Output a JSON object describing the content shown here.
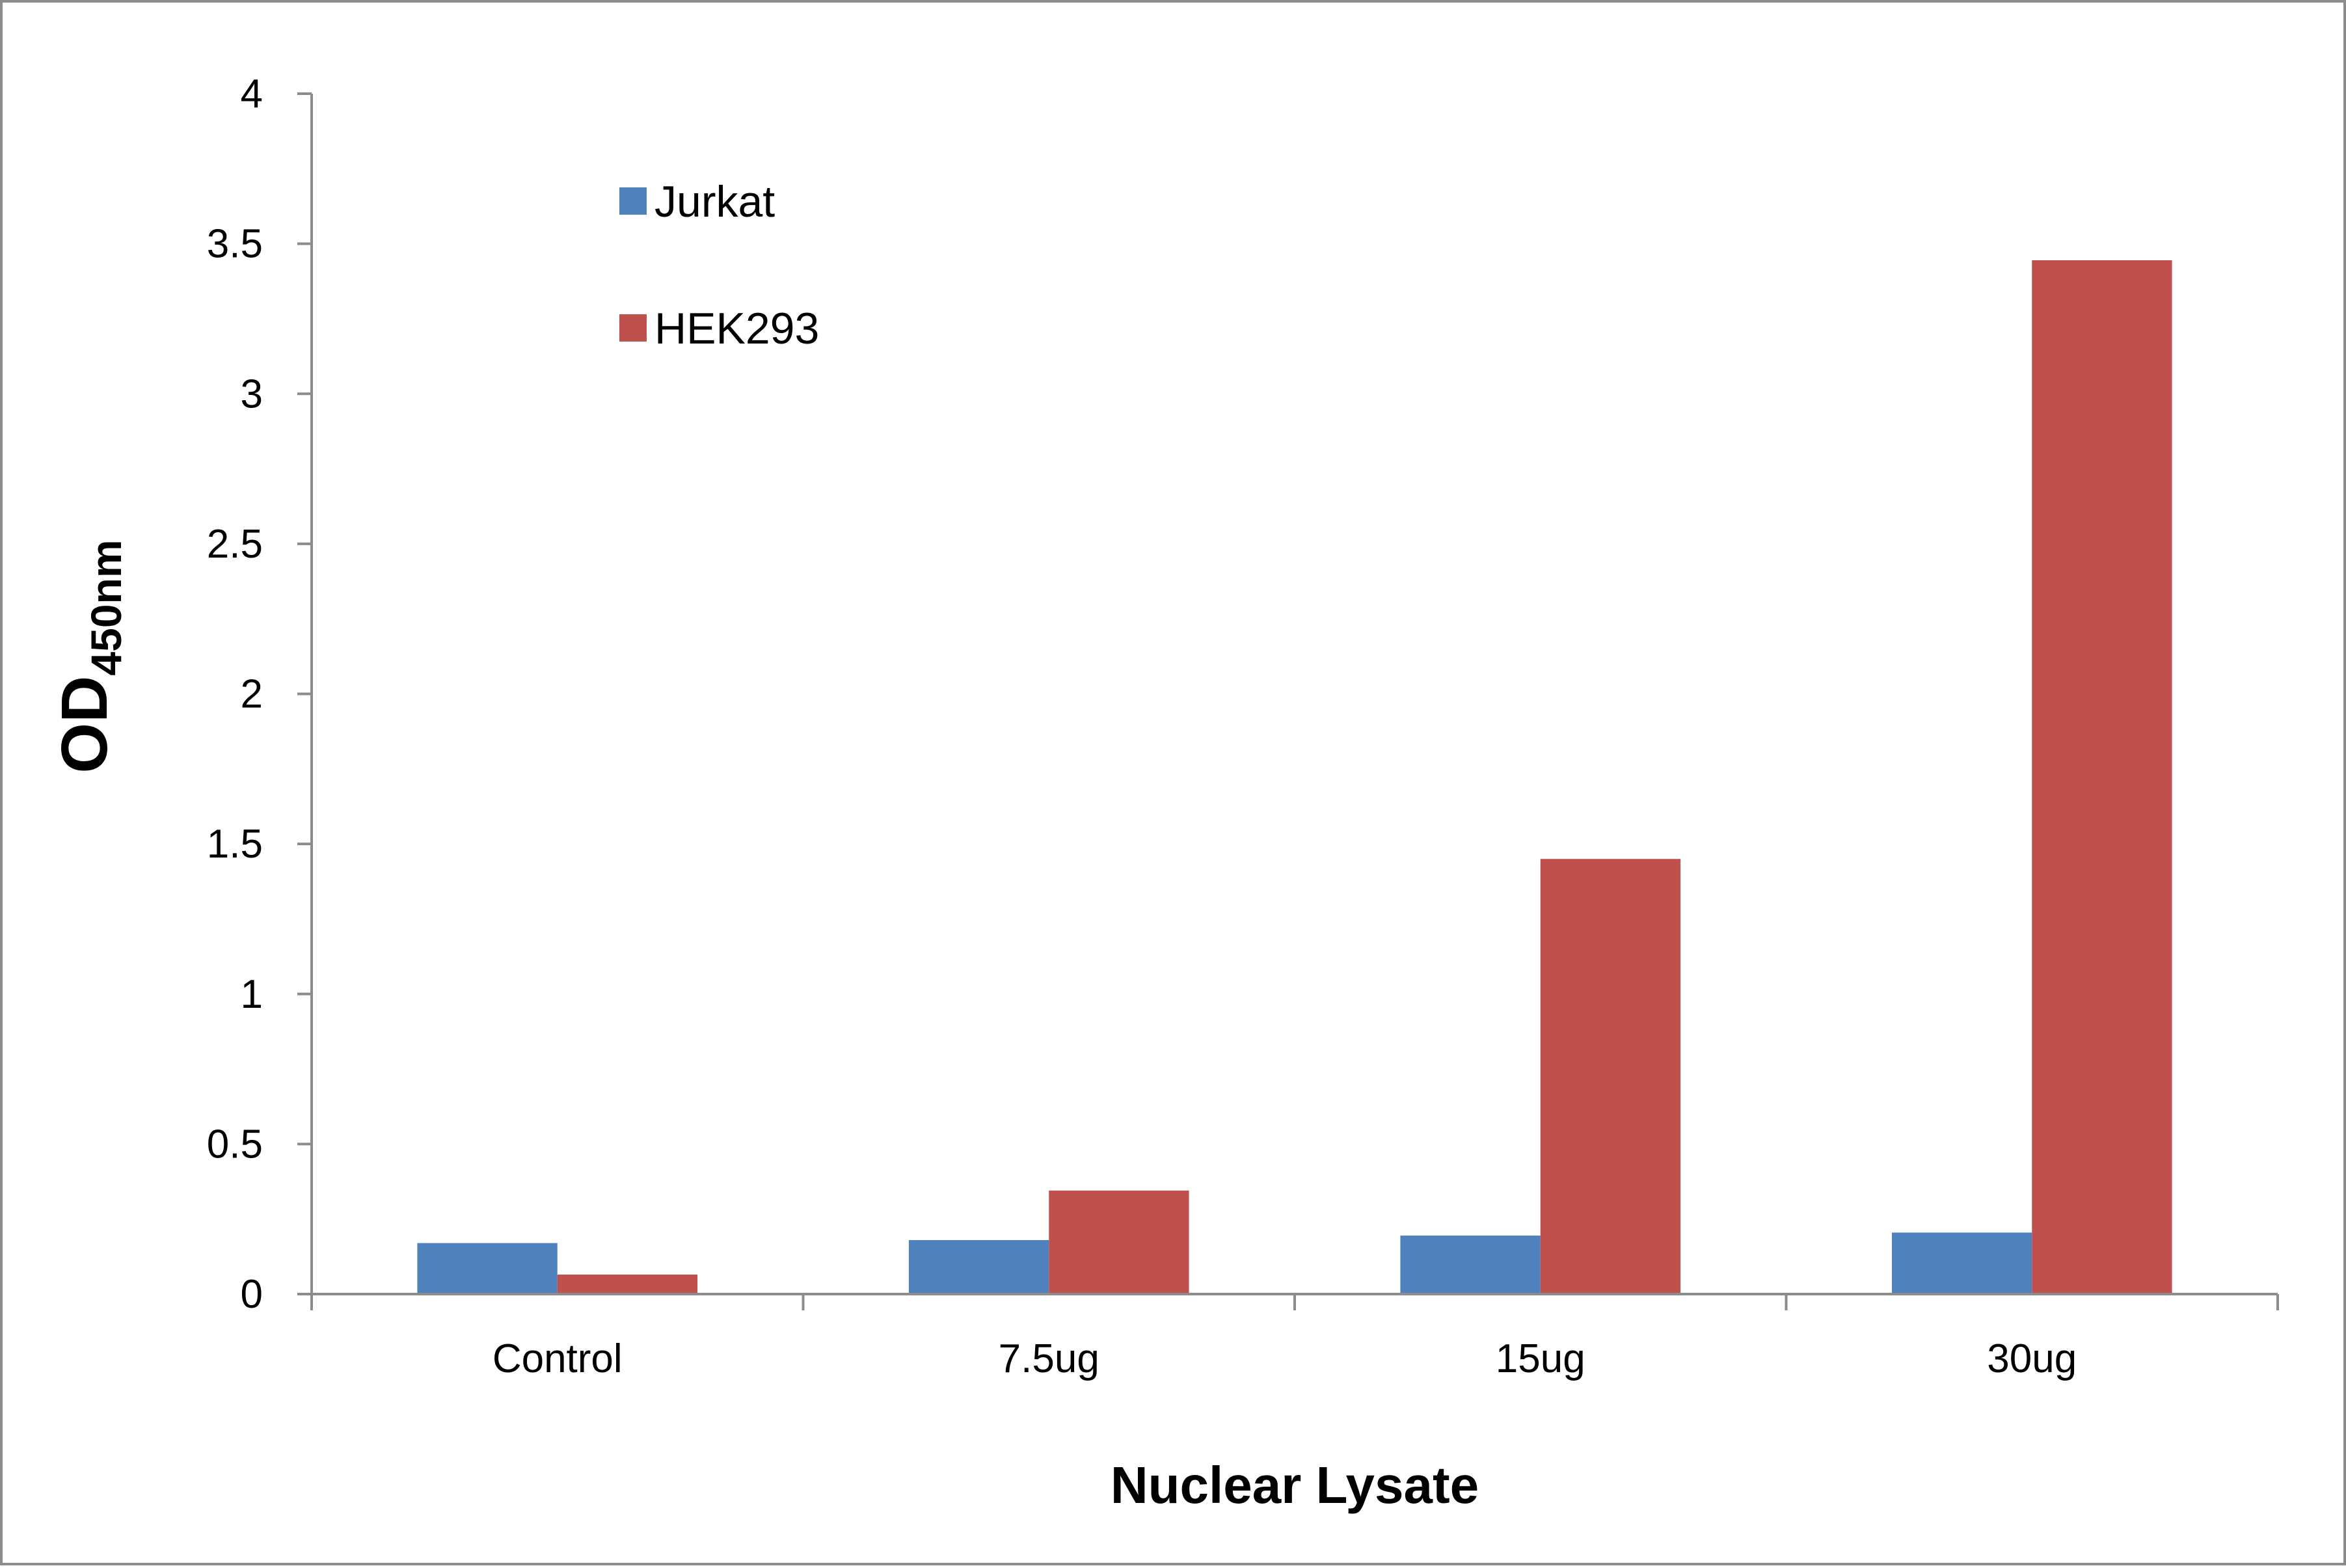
{
  "chart_data": {
    "type": "bar",
    "title": "",
    "xlabel": "Nuclear Lysate",
    "ylabel": {
      "main": "OD",
      "subscript": "450nm"
    },
    "categories": [
      "Control",
      "7.5ug",
      "15ug",
      "30ug"
    ],
    "series": [
      {
        "name": "Jurkat",
        "color": "#4f81bd",
        "values": [
          0.17,
          0.18,
          0.195,
          0.205
        ]
      },
      {
        "name": "HEK293",
        "color": "#c0504d",
        "values": [
          0.065,
          0.345,
          1.45,
          3.445
        ]
      }
    ],
    "ylim": [
      0,
      4
    ],
    "yticks": [
      "0",
      "0.5",
      "1",
      "1.5",
      "2",
      "2.5",
      "3",
      "3.5",
      "4"
    ],
    "grid": false,
    "legend_position": "top-left"
  }
}
